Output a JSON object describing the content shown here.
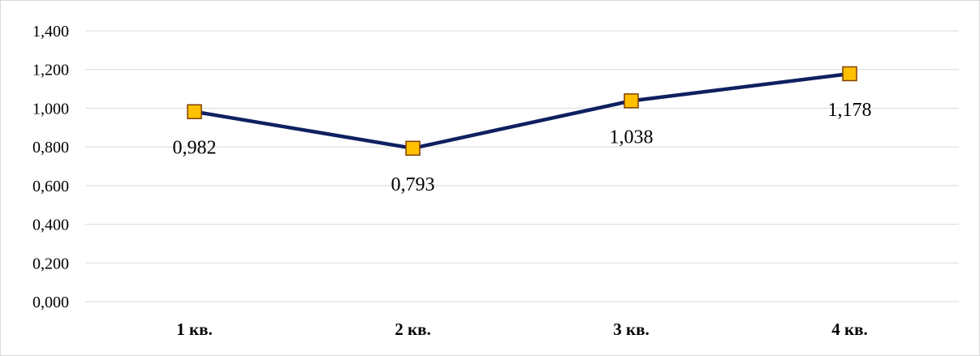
{
  "chart_data": {
    "type": "line",
    "categories": [
      "1 кв.",
      "2 кв.",
      "3 кв.",
      "4 кв."
    ],
    "series": [
      {
        "values": [
          0.982,
          0.793,
          1.038,
          1.178
        ]
      }
    ],
    "data_labels": [
      "0,982",
      "0,793",
      "1,038",
      "1,178"
    ],
    "y_ticks": [
      "0,000",
      "0,200",
      "0,400",
      "0,600",
      "0,800",
      "1,000",
      "1,200",
      "1,400"
    ],
    "ylim": [
      0,
      1.4
    ],
    "y_step": 0.2,
    "grid": true,
    "legend": "none",
    "line_color": "#0f2060",
    "marker": "square",
    "marker_fill": "#ffc000",
    "marker_edge": "#7f3f00",
    "gridline_color": "#d9d9d9"
  }
}
